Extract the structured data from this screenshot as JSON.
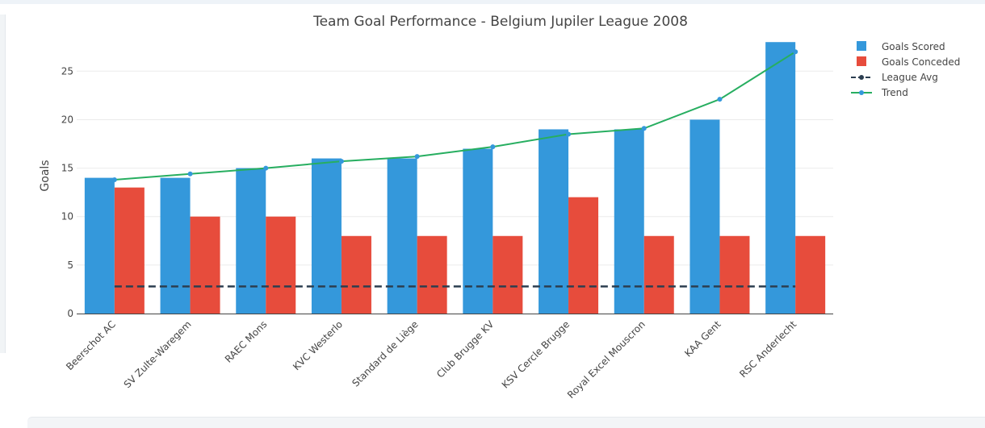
{
  "chart_data": {
    "type": "bar",
    "title": "Team Goal Performance - Belgium Jupiler League 2008",
    "ylabel": "Goals",
    "xlabel": "",
    "ylim": [
      0,
      28.6
    ],
    "yticks": [
      0,
      5,
      10,
      15,
      20,
      25
    ],
    "grid": true,
    "legend_position": "top-right",
    "categories": [
      "Beerschot AC",
      "SV Zulte-Waregem",
      "RAEC Mons",
      "KVC Westerlo",
      "Standard de Liège",
      "Club Brugge KV",
      "KSV Cercle Brugge",
      "Royal Excel Mouscron",
      "KAA Gent",
      "RSC Anderlecht"
    ],
    "series": [
      {
        "name": "Goals Scored",
        "type": "bar",
        "color": "#3498db",
        "values": [
          14,
          14,
          15,
          16,
          16,
          17,
          19,
          19,
          20,
          28
        ]
      },
      {
        "name": "Goals Conceded",
        "type": "bar",
        "color": "#e74c3c",
        "values": [
          13,
          10,
          10,
          8,
          8,
          8,
          12,
          8,
          8,
          8
        ]
      },
      {
        "name": "League Avg",
        "type": "line",
        "style": "dashed",
        "color": "#2c3e50",
        "values": [
          2.8,
          2.8,
          2.8,
          2.8,
          2.8,
          2.8,
          2.8,
          2.8,
          2.8,
          2.8
        ]
      },
      {
        "name": "Trend",
        "type": "line",
        "color": "#27ae60",
        "marker_color": "#3498db",
        "values": [
          13.8,
          14.4,
          15.0,
          15.7,
          16.2,
          17.2,
          18.5,
          19.1,
          22.1,
          27.0
        ]
      }
    ]
  }
}
